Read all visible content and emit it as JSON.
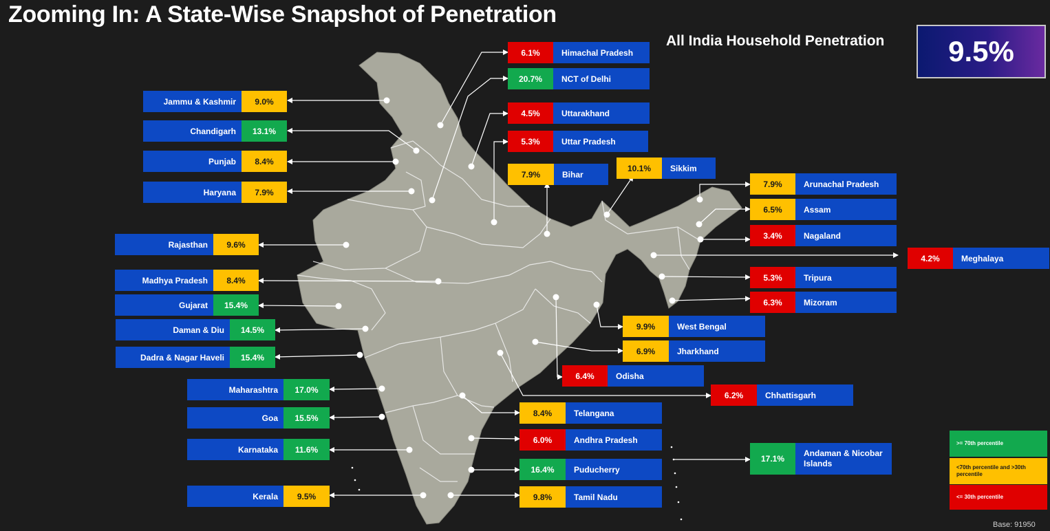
{
  "title": "Zooming In: A State-Wise Snapshot of Penetration",
  "headline": {
    "label": "All India Household Penetration",
    "value": "9.5%"
  },
  "states": {
    "jk": {
      "name": "Jammu & Kashmir",
      "value": "9.0%",
      "tier": "mid"
    },
    "chandigarh": {
      "name": "Chandigarh",
      "value": "13.1%",
      "tier": "high"
    },
    "punjab": {
      "name": "Punjab",
      "value": "8.4%",
      "tier": "mid"
    },
    "haryana": {
      "name": "Haryana",
      "value": "7.9%",
      "tier": "mid"
    },
    "rajasthan": {
      "name": "Rajasthan",
      "value": "9.6%",
      "tier": "mid"
    },
    "mp": {
      "name": "Madhya Pradesh",
      "value": "8.4%",
      "tier": "mid"
    },
    "gujarat": {
      "name": "Gujarat",
      "value": "15.4%",
      "tier": "high"
    },
    "daman": {
      "name": "Daman & Diu",
      "value": "14.5%",
      "tier": "high"
    },
    "dnh": {
      "name": "Dadra & Nagar Haveli",
      "value": "15.4%",
      "tier": "high"
    },
    "maharashtra": {
      "name": "Maharashtra",
      "value": "17.0%",
      "tier": "high"
    },
    "goa": {
      "name": "Goa",
      "value": "15.5%",
      "tier": "high"
    },
    "karnataka": {
      "name": "Karnataka",
      "value": "11.6%",
      "tier": "high"
    },
    "kerala": {
      "name": "Kerala",
      "value": "9.5%",
      "tier": "mid"
    },
    "hp": {
      "name": "Himachal Pradesh",
      "value": "6.1%",
      "tier": "low"
    },
    "delhi": {
      "name": "NCT of Delhi",
      "value": "20.7%",
      "tier": "high"
    },
    "uttarakhand": {
      "name": "Uttarakhand",
      "value": "4.5%",
      "tier": "low"
    },
    "up": {
      "name": "Uttar Pradesh",
      "value": "5.3%",
      "tier": "low"
    },
    "bihar": {
      "name": "Bihar",
      "value": "7.9%",
      "tier": "mid"
    },
    "sikkim": {
      "name": "Sikkim",
      "value": "10.1%",
      "tier": "mid"
    },
    "arunachal": {
      "name": "Arunachal Pradesh",
      "value": "7.9%",
      "tier": "mid"
    },
    "assam": {
      "name": "Assam",
      "value": "6.5%",
      "tier": "mid"
    },
    "nagaland": {
      "name": "Nagaland",
      "value": "3.4%",
      "tier": "low"
    },
    "meghalaya": {
      "name": "Meghalaya",
      "value": "4.2%",
      "tier": "low"
    },
    "tripura": {
      "name": "Tripura",
      "value": "5.3%",
      "tier": "low"
    },
    "mizoram": {
      "name": "Mizoram",
      "value": "6.3%",
      "tier": "low"
    },
    "wb": {
      "name": "West Bengal",
      "value": "9.9%",
      "tier": "mid"
    },
    "jharkhand": {
      "name": "Jharkhand",
      "value": "6.9%",
      "tier": "mid"
    },
    "odisha": {
      "name": "Odisha",
      "value": "6.4%",
      "tier": "low"
    },
    "chhattisgarh": {
      "name": "Chhattisgarh",
      "value": "6.2%",
      "tier": "low"
    },
    "telangana": {
      "name": "Telangana",
      "value": "8.4%",
      "tier": "mid"
    },
    "ap": {
      "name": "Andhra Pradesh",
      "value": "6.0%",
      "tier": "low"
    },
    "andaman": {
      "name": "Andaman & Nicobar Islands",
      "value": "17.1%",
      "tier": "high"
    },
    "puducherry": {
      "name": "Puducherry",
      "value": "16.4%",
      "tier": "high"
    },
    "tn": {
      "name": "Tamil Nadu",
      "value": "9.8%",
      "tier": "mid"
    }
  },
  "legend": {
    "high": ">= 70th percentile",
    "mid": "<70th percentile and >30th percentile",
    "low": "<= 30th percentile"
  },
  "colors": {
    "high": "#12a94e",
    "mid": "#ffc000",
    "low": "#e00000",
    "label_bg": "#0d49c4",
    "map_fill": "#a9a99d"
  },
  "footer": "Base: 91950"
}
